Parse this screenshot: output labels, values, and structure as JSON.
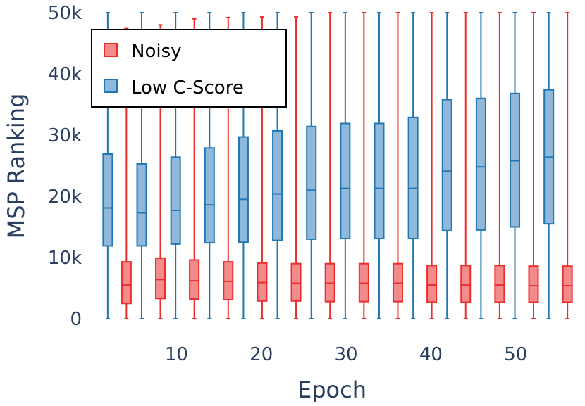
{
  "chart_data": {
    "type": "box",
    "xlabel": "Epoch",
    "ylabel": "MSP Ranking",
    "ylim": [
      0,
      50000
    ],
    "yticks": [
      0,
      10000,
      20000,
      30000,
      40000,
      50000
    ],
    "ytick_labels": [
      "0",
      "10k",
      "20k",
      "30k",
      "40k",
      "50k"
    ],
    "xticks": [
      10,
      20,
      30,
      40,
      50
    ],
    "xtick_labels": [
      "10",
      "20",
      "30",
      "40",
      "50"
    ],
    "xlim": [
      -0.5,
      57.5
    ],
    "grid": false,
    "legend_position": "top-left",
    "categories": [
      3,
      7,
      11,
      15,
      19,
      23,
      27,
      31,
      35,
      39,
      43,
      47,
      51,
      55
    ],
    "series": [
      {
        "name": "Low C-Score",
        "color": "#1f77b4",
        "fill": "#8fb8db",
        "offset": -1.1,
        "boxes": [
          {
            "min": 0,
            "q1": 11900,
            "median": 18100,
            "q3": 26900,
            "max": 50000
          },
          {
            "min": 0,
            "q1": 11900,
            "median": 17300,
            "q3": 25300,
            "max": 50000
          },
          {
            "min": 0,
            "q1": 12200,
            "median": 17700,
            "q3": 26400,
            "max": 50000
          },
          {
            "min": 0,
            "q1": 12400,
            "median": 18600,
            "q3": 27900,
            "max": 50000
          },
          {
            "min": 0,
            "q1": 12500,
            "median": 19500,
            "q3": 29700,
            "max": 50000
          },
          {
            "min": 0,
            "q1": 12800,
            "median": 20400,
            "q3": 30700,
            "max": 50000
          },
          {
            "min": 0,
            "q1": 13000,
            "median": 21000,
            "q3": 31400,
            "max": 50000
          },
          {
            "min": 0,
            "q1": 13100,
            "median": 21300,
            "q3": 31900,
            "max": 50000
          },
          {
            "min": 0,
            "q1": 13100,
            "median": 21300,
            "q3": 31900,
            "max": 50000
          },
          {
            "min": 0,
            "q1": 13100,
            "median": 21300,
            "q3": 32900,
            "max": 50000
          },
          {
            "min": 0,
            "q1": 14400,
            "median": 24100,
            "q3": 35800,
            "max": 50000
          },
          {
            "min": 0,
            "q1": 14500,
            "median": 24800,
            "q3": 36000,
            "max": 50000
          },
          {
            "min": 0,
            "q1": 15000,
            "median": 25800,
            "q3": 36800,
            "max": 50000
          },
          {
            "min": 0,
            "q1": 15500,
            "median": 26400,
            "q3": 37400,
            "max": 50000
          }
        ]
      },
      {
        "name": "Noisy",
        "color": "#ef2b2b",
        "fill": "#f28b8b",
        "offset": 1.1,
        "boxes": [
          {
            "min": 0,
            "q1": 2500,
            "median": 5500,
            "q3": 9300,
            "max": 47400
          },
          {
            "min": 0,
            "q1": 3300,
            "median": 6400,
            "q3": 9900,
            "max": 48000
          },
          {
            "min": 0,
            "q1": 3200,
            "median": 6200,
            "q3": 9600,
            "max": 49000
          },
          {
            "min": 0,
            "q1": 3100,
            "median": 6100,
            "q3": 9300,
            "max": 49200
          },
          {
            "min": 0,
            "q1": 2900,
            "median": 5900,
            "q3": 9100,
            "max": 49300
          },
          {
            "min": 0,
            "q1": 2900,
            "median": 5800,
            "q3": 9000,
            "max": 49300
          },
          {
            "min": 0,
            "q1": 2800,
            "median": 5800,
            "q3": 9000,
            "max": 50000
          },
          {
            "min": 0,
            "q1": 2800,
            "median": 5800,
            "q3": 9000,
            "max": 50000
          },
          {
            "min": 0,
            "q1": 2800,
            "median": 5800,
            "q3": 9000,
            "max": 50000
          },
          {
            "min": 0,
            "q1": 2700,
            "median": 5500,
            "q3": 8700,
            "max": 50000
          },
          {
            "min": 0,
            "q1": 2700,
            "median": 5500,
            "q3": 8700,
            "max": 50000
          },
          {
            "min": 0,
            "q1": 2700,
            "median": 5500,
            "q3": 8700,
            "max": 50000
          },
          {
            "min": 0,
            "q1": 2700,
            "median": 5400,
            "q3": 8600,
            "max": 50000
          },
          {
            "min": 0,
            "q1": 2700,
            "median": 5400,
            "q3": 8600,
            "max": 50000
          }
        ]
      }
    ]
  }
}
